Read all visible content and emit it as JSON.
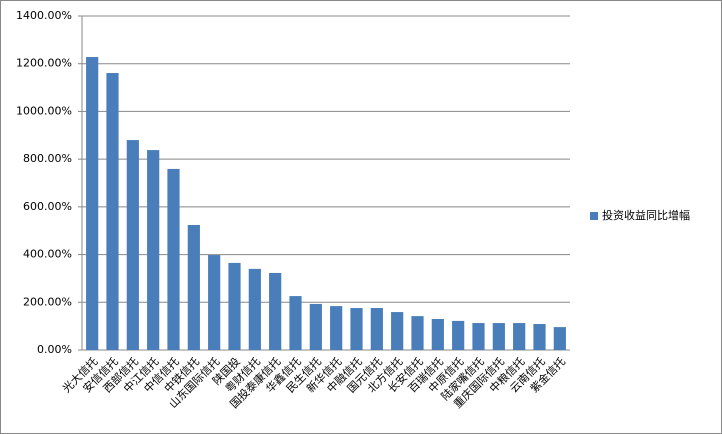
{
  "chart_data": {
    "type": "bar",
    "categories": [
      "光大信托",
      "安信信托",
      "西部信托",
      "中江信托",
      "中信信托",
      "中铁信托",
      "山东国际信托",
      "陕国投",
      "粤财信托",
      "国投泰康信托",
      "华鑫信托",
      "民生信托",
      "新华信托",
      "中融信托",
      "国元信托",
      "北方信托",
      "长安信托",
      "百瑞信托",
      "中原信托",
      "陆家嘴信托",
      "重庆国际信托",
      "中粮信托",
      "云南信托",
      "紫金信托"
    ],
    "series": [
      {
        "name": "投资收益同比增幅",
        "color": "#4a7ebb",
        "values": [
          1228,
          1161,
          880,
          838,
          759,
          524,
          398,
          365,
          340,
          323,
          226,
          193,
          184,
          176,
          176,
          159,
          142,
          130,
          122,
          113,
          113,
          113,
          109,
          96
        ]
      }
    ],
    "ylim": [
      0,
      1400
    ],
    "yticks": [
      {
        "value": 0,
        "label": "0.00%"
      },
      {
        "value": 200,
        "label": "200.00%"
      },
      {
        "value": 400,
        "label": "400.00%"
      },
      {
        "value": 600,
        "label": "600.00%"
      },
      {
        "value": 800,
        "label": "800.00%"
      },
      {
        "value": 1000,
        "label": "1000.00%"
      },
      {
        "value": 1200,
        "label": "1200.00%"
      },
      {
        "value": 1400,
        "label": "1400.00%"
      }
    ],
    "grid": true,
    "legend": "right"
  }
}
